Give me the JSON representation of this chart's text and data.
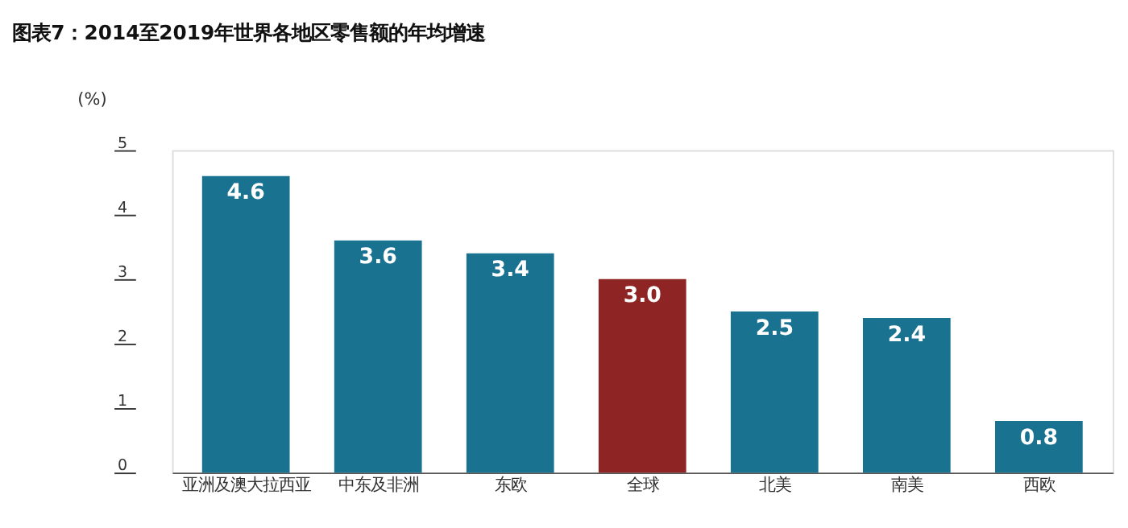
{
  "chart_data": {
    "type": "bar",
    "title": "图表7：2014至2019年世界各地区零售额的年均增速",
    "ylabel": "(%)",
    "categories": [
      "亚洲及澳大拉西亚",
      "中东及非洲",
      "东欧",
      "全球",
      "北美",
      "南美",
      "西欧"
    ],
    "values": [
      4.6,
      3.6,
      3.4,
      3.0,
      2.5,
      2.4,
      0.8
    ],
    "colors": [
      "#1a7291",
      "#1a7291",
      "#1a7291",
      "#8e2424",
      "#1a7291",
      "#1a7291",
      "#1a7291"
    ],
    "value_labels": [
      "4.6",
      "3.6",
      "3.4",
      "3.0",
      "2.5",
      "2.4",
      "0.8"
    ],
    "ylim": [
      0,
      5
    ],
    "yticks": [
      0,
      1,
      2,
      3,
      4,
      5
    ],
    "grid": false
  }
}
